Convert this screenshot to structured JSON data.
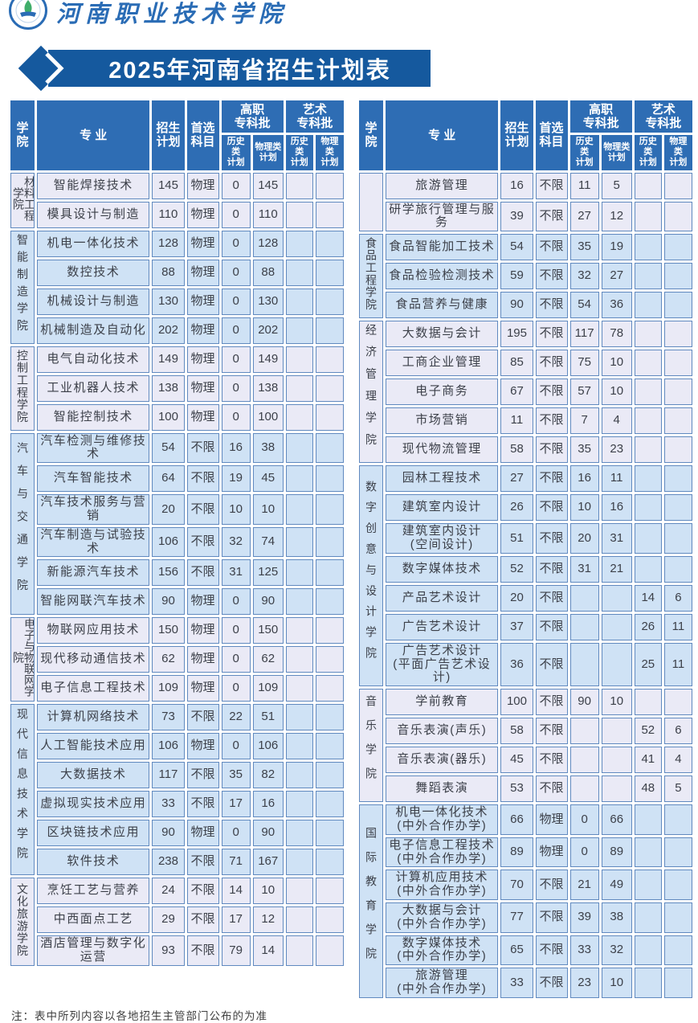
{
  "page": {
    "university_name": "河南职业技术学院",
    "title": "2025年河南省招生计划表",
    "note": "注：表中所列内容以各地招生主管部门公布的为准"
  },
  "colors": {
    "banner_blue": "#15599e",
    "header_blue": "#2e6db4",
    "row_lavender": "#eaeaf6",
    "row_blue": "#cfe2f5",
    "border_blue": "#6089bf",
    "logo_blue": "#2a6cb5",
    "logo_green": "#3fae6a"
  },
  "table_header": {
    "college": "学院",
    "major": "专  业",
    "plan": "招生\n计划",
    "subject": "首选\n科目",
    "vocational_batch": "高职\n专科批",
    "art_batch": "艺术\n专科批",
    "history_plan": "历史类\n计划",
    "physics_plan": "物理类\n计划"
  },
  "left_table": {
    "groups": [
      {
        "college": "材料工程学院",
        "shade": "lavender",
        "rows": [
          [
            "智能焊接技术",
            "145",
            "物理",
            "0",
            "145",
            "",
            ""
          ],
          [
            "模具设计与制造",
            "110",
            "物理",
            "0",
            "110",
            "",
            ""
          ]
        ]
      },
      {
        "college": "智能制造学院",
        "shade": "blue",
        "rows": [
          [
            "机电一体化技术",
            "128",
            "物理",
            "0",
            "128",
            "",
            ""
          ],
          [
            "数控技术",
            "88",
            "物理",
            "0",
            "88",
            "",
            ""
          ],
          [
            "机械设计与制造",
            "130",
            "物理",
            "0",
            "130",
            "",
            ""
          ],
          [
            "机械制造及自动化",
            "202",
            "物理",
            "0",
            "202",
            "",
            ""
          ]
        ]
      },
      {
        "college": "控制工程学院",
        "shade": "lavender",
        "rows": [
          [
            "电气自动化技术",
            "149",
            "物理",
            "0",
            "149",
            "",
            ""
          ],
          [
            "工业机器人技术",
            "138",
            "物理",
            "0",
            "138",
            "",
            ""
          ],
          [
            "智能控制技术",
            "100",
            "物理",
            "0",
            "100",
            "",
            ""
          ]
        ]
      },
      {
        "college": "汽车与交通学院",
        "shade": "blue",
        "rows": [
          [
            "汽车检测与维修技术",
            "54",
            "不限",
            "16",
            "38",
            "",
            ""
          ],
          [
            "汽车智能技术",
            "64",
            "不限",
            "19",
            "45",
            "",
            ""
          ],
          [
            "汽车技术服务与营销",
            "20",
            "不限",
            "10",
            "10",
            "",
            ""
          ],
          [
            "汽车制造与试验技术",
            "106",
            "不限",
            "32",
            "74",
            "",
            ""
          ],
          [
            "新能源汽车技术",
            "156",
            "不限",
            "31",
            "125",
            "",
            ""
          ],
          [
            "智能网联汽车技术",
            "90",
            "物理",
            "0",
            "90",
            "",
            ""
          ]
        ]
      },
      {
        "college": "电子与物联网学院",
        "shade": "lavender",
        "rows": [
          [
            "物联网应用技术",
            "150",
            "物理",
            "0",
            "150",
            "",
            ""
          ],
          [
            "现代移动通信技术",
            "62",
            "物理",
            "0",
            "62",
            "",
            ""
          ],
          [
            "电子信息工程技术",
            "109",
            "物理",
            "0",
            "109",
            "",
            ""
          ]
        ]
      },
      {
        "college": "现代信息技术学院",
        "shade": "blue",
        "rows": [
          [
            "计算机网络技术",
            "73",
            "不限",
            "22",
            "51",
            "",
            ""
          ],
          [
            "人工智能技术应用",
            "106",
            "物理",
            "0",
            "106",
            "",
            ""
          ],
          [
            "大数据技术",
            "117",
            "不限",
            "35",
            "82",
            "",
            ""
          ],
          [
            "虚拟现实技术应用",
            "33",
            "不限",
            "17",
            "16",
            "",
            ""
          ],
          [
            "区块链技术应用",
            "90",
            "物理",
            "0",
            "90",
            "",
            ""
          ],
          [
            "软件技术",
            "238",
            "不限",
            "71",
            "167",
            "",
            ""
          ]
        ]
      },
      {
        "college": "文化旅游学院",
        "shade": "lavender",
        "rows": [
          [
            "烹饪工艺与营养",
            "24",
            "不限",
            "14",
            "10",
            "",
            ""
          ],
          [
            "中西面点工艺",
            "29",
            "不限",
            "17",
            "12",
            "",
            ""
          ],
          [
            "酒店管理与数字化运营",
            "93",
            "不限",
            "79",
            "14",
            "",
            ""
          ]
        ]
      }
    ]
  },
  "right_table": {
    "groups": [
      {
        "college": "",
        "shade": "lavender",
        "rows": [
          [
            "旅游管理",
            "16",
            "不限",
            "11",
            "5",
            "",
            ""
          ],
          [
            "研学旅行管理与服务",
            "39",
            "不限",
            "27",
            "12",
            "",
            ""
          ]
        ]
      },
      {
        "college": "食品工程学院",
        "shade": "blue",
        "rows": [
          [
            "食品智能加工技术",
            "54",
            "不限",
            "35",
            "19",
            "",
            ""
          ],
          [
            "食品检验检测技术",
            "59",
            "不限",
            "32",
            "27",
            "",
            ""
          ],
          [
            "食品营养与健康",
            "90",
            "不限",
            "54",
            "36",
            "",
            ""
          ]
        ]
      },
      {
        "college": "经济管理学院",
        "shade": "lavender",
        "rows": [
          [
            "大数据与会计",
            "195",
            "不限",
            "117",
            "78",
            "",
            ""
          ],
          [
            "工商企业管理",
            "85",
            "不限",
            "75",
            "10",
            "",
            ""
          ],
          [
            "电子商务",
            "67",
            "不限",
            "57",
            "10",
            "",
            ""
          ],
          [
            "市场营销",
            "11",
            "不限",
            "7",
            "4",
            "",
            ""
          ],
          [
            "现代物流管理",
            "58",
            "不限",
            "35",
            "23",
            "",
            ""
          ]
        ]
      },
      {
        "college": "数字创意与设计学院",
        "shade": "blue",
        "rows": [
          [
            "园林工程技术",
            "27",
            "不限",
            "16",
            "11",
            "",
            ""
          ],
          [
            "建筑室内设计",
            "26",
            "不限",
            "10",
            "16",
            "",
            ""
          ],
          [
            "建筑室内设计\n(空间设计)",
            "51",
            "不限",
            "20",
            "31",
            "",
            ""
          ],
          [
            "数字媒体技术",
            "52",
            "不限",
            "31",
            "21",
            "",
            ""
          ],
          [
            "产品艺术设计",
            "20",
            "不限",
            "",
            "",
            "14",
            "6"
          ],
          [
            "广告艺术设计",
            "37",
            "不限",
            "",
            "",
            "26",
            "11"
          ],
          [
            "广告艺术设计\n(平面广告艺术设计)",
            "36",
            "不限",
            "",
            "",
            "25",
            "11"
          ]
        ]
      },
      {
        "college": "音乐学院",
        "shade": "lavender",
        "rows": [
          [
            "学前教育",
            "100",
            "不限",
            "90",
            "10",
            "",
            ""
          ],
          [
            "音乐表演(声乐)",
            "58",
            "不限",
            "",
            "",
            "52",
            "6"
          ],
          [
            "音乐表演(器乐)",
            "45",
            "不限",
            "",
            "",
            "41",
            "4"
          ],
          [
            "舞蹈表演",
            "53",
            "不限",
            "",
            "",
            "48",
            "5"
          ]
        ]
      },
      {
        "college": "国际教育学院",
        "shade": "blue",
        "rows": [
          [
            "机电一体化技术\n(中外合作办学)",
            "66",
            "物理",
            "0",
            "66",
            "",
            ""
          ],
          [
            "电子信息工程技术\n(中外合作办学)",
            "89",
            "物理",
            "0",
            "89",
            "",
            ""
          ],
          [
            "计算机应用技术\n(中外合作办学)",
            "70",
            "不限",
            "21",
            "49",
            "",
            ""
          ],
          [
            "大数据与会计\n(中外合作办学)",
            "77",
            "不限",
            "39",
            "38",
            "",
            ""
          ],
          [
            "数字媒体技术\n(中外合作办学)",
            "65",
            "不限",
            "33",
            "32",
            "",
            ""
          ],
          [
            "旅游管理\n(中外合作办学)",
            "33",
            "不限",
            "23",
            "10",
            "",
            ""
          ]
        ]
      }
    ]
  }
}
